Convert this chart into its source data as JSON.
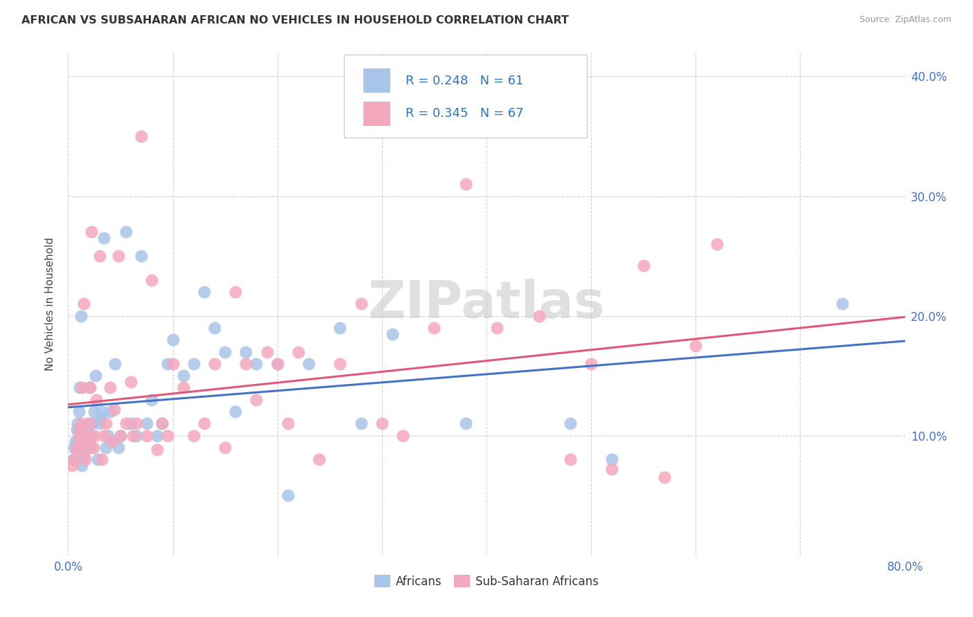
{
  "title": "AFRICAN VS SUBSAHARAN AFRICAN NO VEHICLES IN HOUSEHOLD CORRELATION CHART",
  "source": "Source: ZipAtlas.com",
  "ylabel": "No Vehicles in Household",
  "xlim": [
    0.0,
    0.8
  ],
  "ylim": [
    0.0,
    0.42
  ],
  "color_blue": "#a8c4e8",
  "color_pink": "#f4a8be",
  "color_blue_line": "#4472c4",
  "color_pink_line": "#e05878",
  "legend_text_color": "#2e75b6",
  "R_blue": 0.248,
  "N_blue": 61,
  "R_pink": 0.345,
  "N_pink": 67,
  "watermark": "ZIPatlas",
  "africans_x": [
    0.005,
    0.006,
    0.007,
    0.008,
    0.009,
    0.01,
    0.011,
    0.012,
    0.013,
    0.014,
    0.015,
    0.016,
    0.017,
    0.018,
    0.019,
    0.02,
    0.021,
    0.022,
    0.023,
    0.025,
    0.026,
    0.028,
    0.03,
    0.031,
    0.032,
    0.034,
    0.036,
    0.038,
    0.04,
    0.042,
    0.045,
    0.048,
    0.05,
    0.055,
    0.06,
    0.065,
    0.07,
    0.075,
    0.08,
    0.085,
    0.09,
    0.095,
    0.1,
    0.11,
    0.12,
    0.13,
    0.14,
    0.15,
    0.16,
    0.17,
    0.18,
    0.2,
    0.21,
    0.23,
    0.26,
    0.28,
    0.31,
    0.38,
    0.48,
    0.52,
    0.74
  ],
  "africans_y": [
    0.08,
    0.09,
    0.095,
    0.105,
    0.11,
    0.12,
    0.14,
    0.2,
    0.075,
    0.082,
    0.09,
    0.095,
    0.1,
    0.105,
    0.11,
    0.14,
    0.09,
    0.1,
    0.11,
    0.12,
    0.15,
    0.08,
    0.11,
    0.115,
    0.12,
    0.265,
    0.09,
    0.1,
    0.12,
    0.095,
    0.16,
    0.09,
    0.1,
    0.27,
    0.11,
    0.1,
    0.25,
    0.11,
    0.13,
    0.1,
    0.11,
    0.16,
    0.18,
    0.15,
    0.16,
    0.22,
    0.19,
    0.17,
    0.12,
    0.17,
    0.16,
    0.16,
    0.05,
    0.16,
    0.19,
    0.11,
    0.185,
    0.11,
    0.11,
    0.08,
    0.21
  ],
  "subsaharan_x": [
    0.004,
    0.006,
    0.008,
    0.009,
    0.01,
    0.011,
    0.012,
    0.013,
    0.015,
    0.016,
    0.017,
    0.018,
    0.019,
    0.02,
    0.021,
    0.022,
    0.024,
    0.025,
    0.027,
    0.03,
    0.032,
    0.034,
    0.036,
    0.04,
    0.042,
    0.044,
    0.048,
    0.05,
    0.055,
    0.06,
    0.062,
    0.065,
    0.07,
    0.075,
    0.08,
    0.085,
    0.09,
    0.095,
    0.1,
    0.11,
    0.12,
    0.13,
    0.14,
    0.15,
    0.16,
    0.17,
    0.18,
    0.19,
    0.2,
    0.21,
    0.22,
    0.24,
    0.26,
    0.28,
    0.3,
    0.32,
    0.35,
    0.38,
    0.41,
    0.45,
    0.48,
    0.5,
    0.52,
    0.55,
    0.57,
    0.6,
    0.62
  ],
  "subsaharan_y": [
    0.075,
    0.08,
    0.088,
    0.092,
    0.1,
    0.105,
    0.11,
    0.14,
    0.21,
    0.08,
    0.088,
    0.095,
    0.1,
    0.11,
    0.14,
    0.27,
    0.09,
    0.1,
    0.13,
    0.25,
    0.08,
    0.1,
    0.11,
    0.14,
    0.095,
    0.122,
    0.25,
    0.1,
    0.11,
    0.145,
    0.1,
    0.11,
    0.35,
    0.1,
    0.23,
    0.088,
    0.11,
    0.1,
    0.16,
    0.14,
    0.1,
    0.11,
    0.16,
    0.09,
    0.22,
    0.16,
    0.13,
    0.17,
    0.16,
    0.11,
    0.17,
    0.08,
    0.16,
    0.21,
    0.11,
    0.1,
    0.19,
    0.31,
    0.19,
    0.2,
    0.08,
    0.16,
    0.072,
    0.242,
    0.065,
    0.175,
    0.26
  ]
}
